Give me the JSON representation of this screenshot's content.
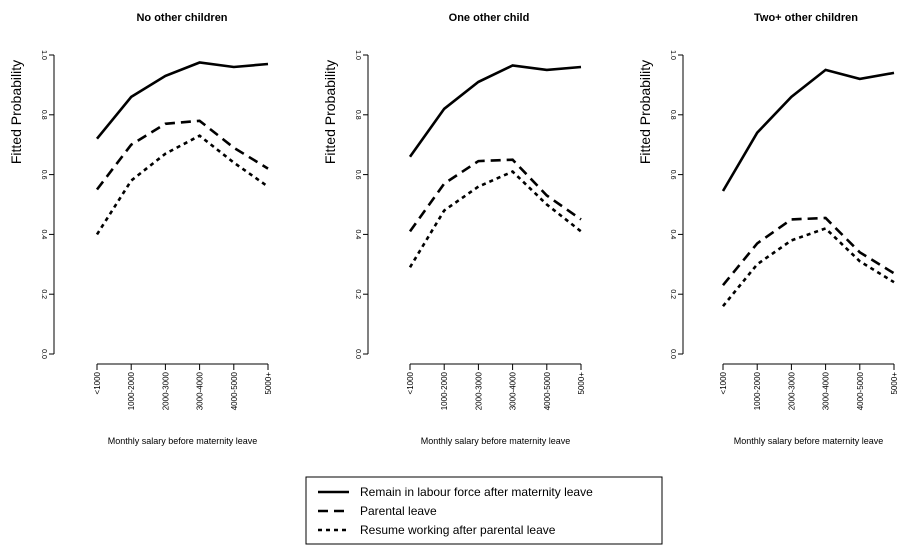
{
  "chart_data": [
    {
      "type": "line",
      "title": "No other children",
      "xlabel": "Monthly salary before maternity leave",
      "ylabel": "Fitted Probability",
      "categories": [
        "<1000",
        "1000-2000",
        "2000-3000",
        "3000-4000",
        "4000-5000",
        "5000+"
      ],
      "yticks": [
        "0.0",
        "0.2",
        "0.4",
        "0.6",
        "0.8",
        "1.0"
      ],
      "ylim": [
        0,
        1
      ],
      "series": [
        {
          "name": "Remain in labour force after maternity leave",
          "style": "solid",
          "values": [
            0.72,
            0.86,
            0.93,
            0.975,
            0.96,
            0.97
          ]
        },
        {
          "name": "Parental leave",
          "style": "dashed",
          "values": [
            0.55,
            0.7,
            0.77,
            0.78,
            0.69,
            0.62
          ]
        },
        {
          "name": "Resume working after parental leave",
          "style": "dotted",
          "values": [
            0.4,
            0.58,
            0.67,
            0.73,
            0.64,
            0.56
          ]
        }
      ]
    },
    {
      "type": "line",
      "title": "One other child",
      "xlabel": "Monthly salary before maternity leave",
      "ylabel": "Fitted Probability",
      "categories": [
        "<1000",
        "1000-2000",
        "2000-3000",
        "3000-4000",
        "4000-5000",
        "5000+"
      ],
      "yticks": [
        "0.0",
        "0.2",
        "0.4",
        "0.6",
        "0.8",
        "1.0"
      ],
      "ylim": [
        0,
        1
      ],
      "series": [
        {
          "name": "Remain in labour force after maternity leave",
          "style": "solid",
          "values": [
            0.66,
            0.82,
            0.91,
            0.965,
            0.95,
            0.96
          ]
        },
        {
          "name": "Parental leave",
          "style": "dashed",
          "values": [
            0.41,
            0.57,
            0.645,
            0.65,
            0.53,
            0.45
          ]
        },
        {
          "name": "Resume working after parental leave",
          "style": "dotted",
          "values": [
            0.29,
            0.48,
            0.56,
            0.61,
            0.5,
            0.41
          ]
        }
      ]
    },
    {
      "type": "line",
      "title": "Two+ other children",
      "xlabel": "Monthly salary before maternity leave",
      "ylabel": "Fitted Probability",
      "categories": [
        "<1000",
        "1000-2000",
        "2000-3000",
        "3000-4000",
        "4000-5000",
        "5000+"
      ],
      "yticks": [
        "0.0",
        "0.2",
        "0.4",
        "0.6",
        "0.8",
        "1.0"
      ],
      "ylim": [
        0,
        1
      ],
      "series": [
        {
          "name": "Remain in labour force after maternity leave",
          "style": "solid",
          "values": [
            0.545,
            0.74,
            0.86,
            0.95,
            0.92,
            0.94
          ]
        },
        {
          "name": "Parental leave",
          "style": "dashed",
          "values": [
            0.23,
            0.37,
            0.45,
            0.455,
            0.34,
            0.27
          ]
        },
        {
          "name": "Resume working after parental leave",
          "style": "dotted",
          "values": [
            0.16,
            0.3,
            0.38,
            0.42,
            0.31,
            0.24
          ]
        }
      ]
    }
  ],
  "legend": {
    "items": [
      {
        "label": "Remain in labour force after maternity leave",
        "style": "solid"
      },
      {
        "label": "Parental leave",
        "style": "dashed"
      },
      {
        "label": "Resume working after parental leave",
        "style": "dotted"
      }
    ]
  }
}
